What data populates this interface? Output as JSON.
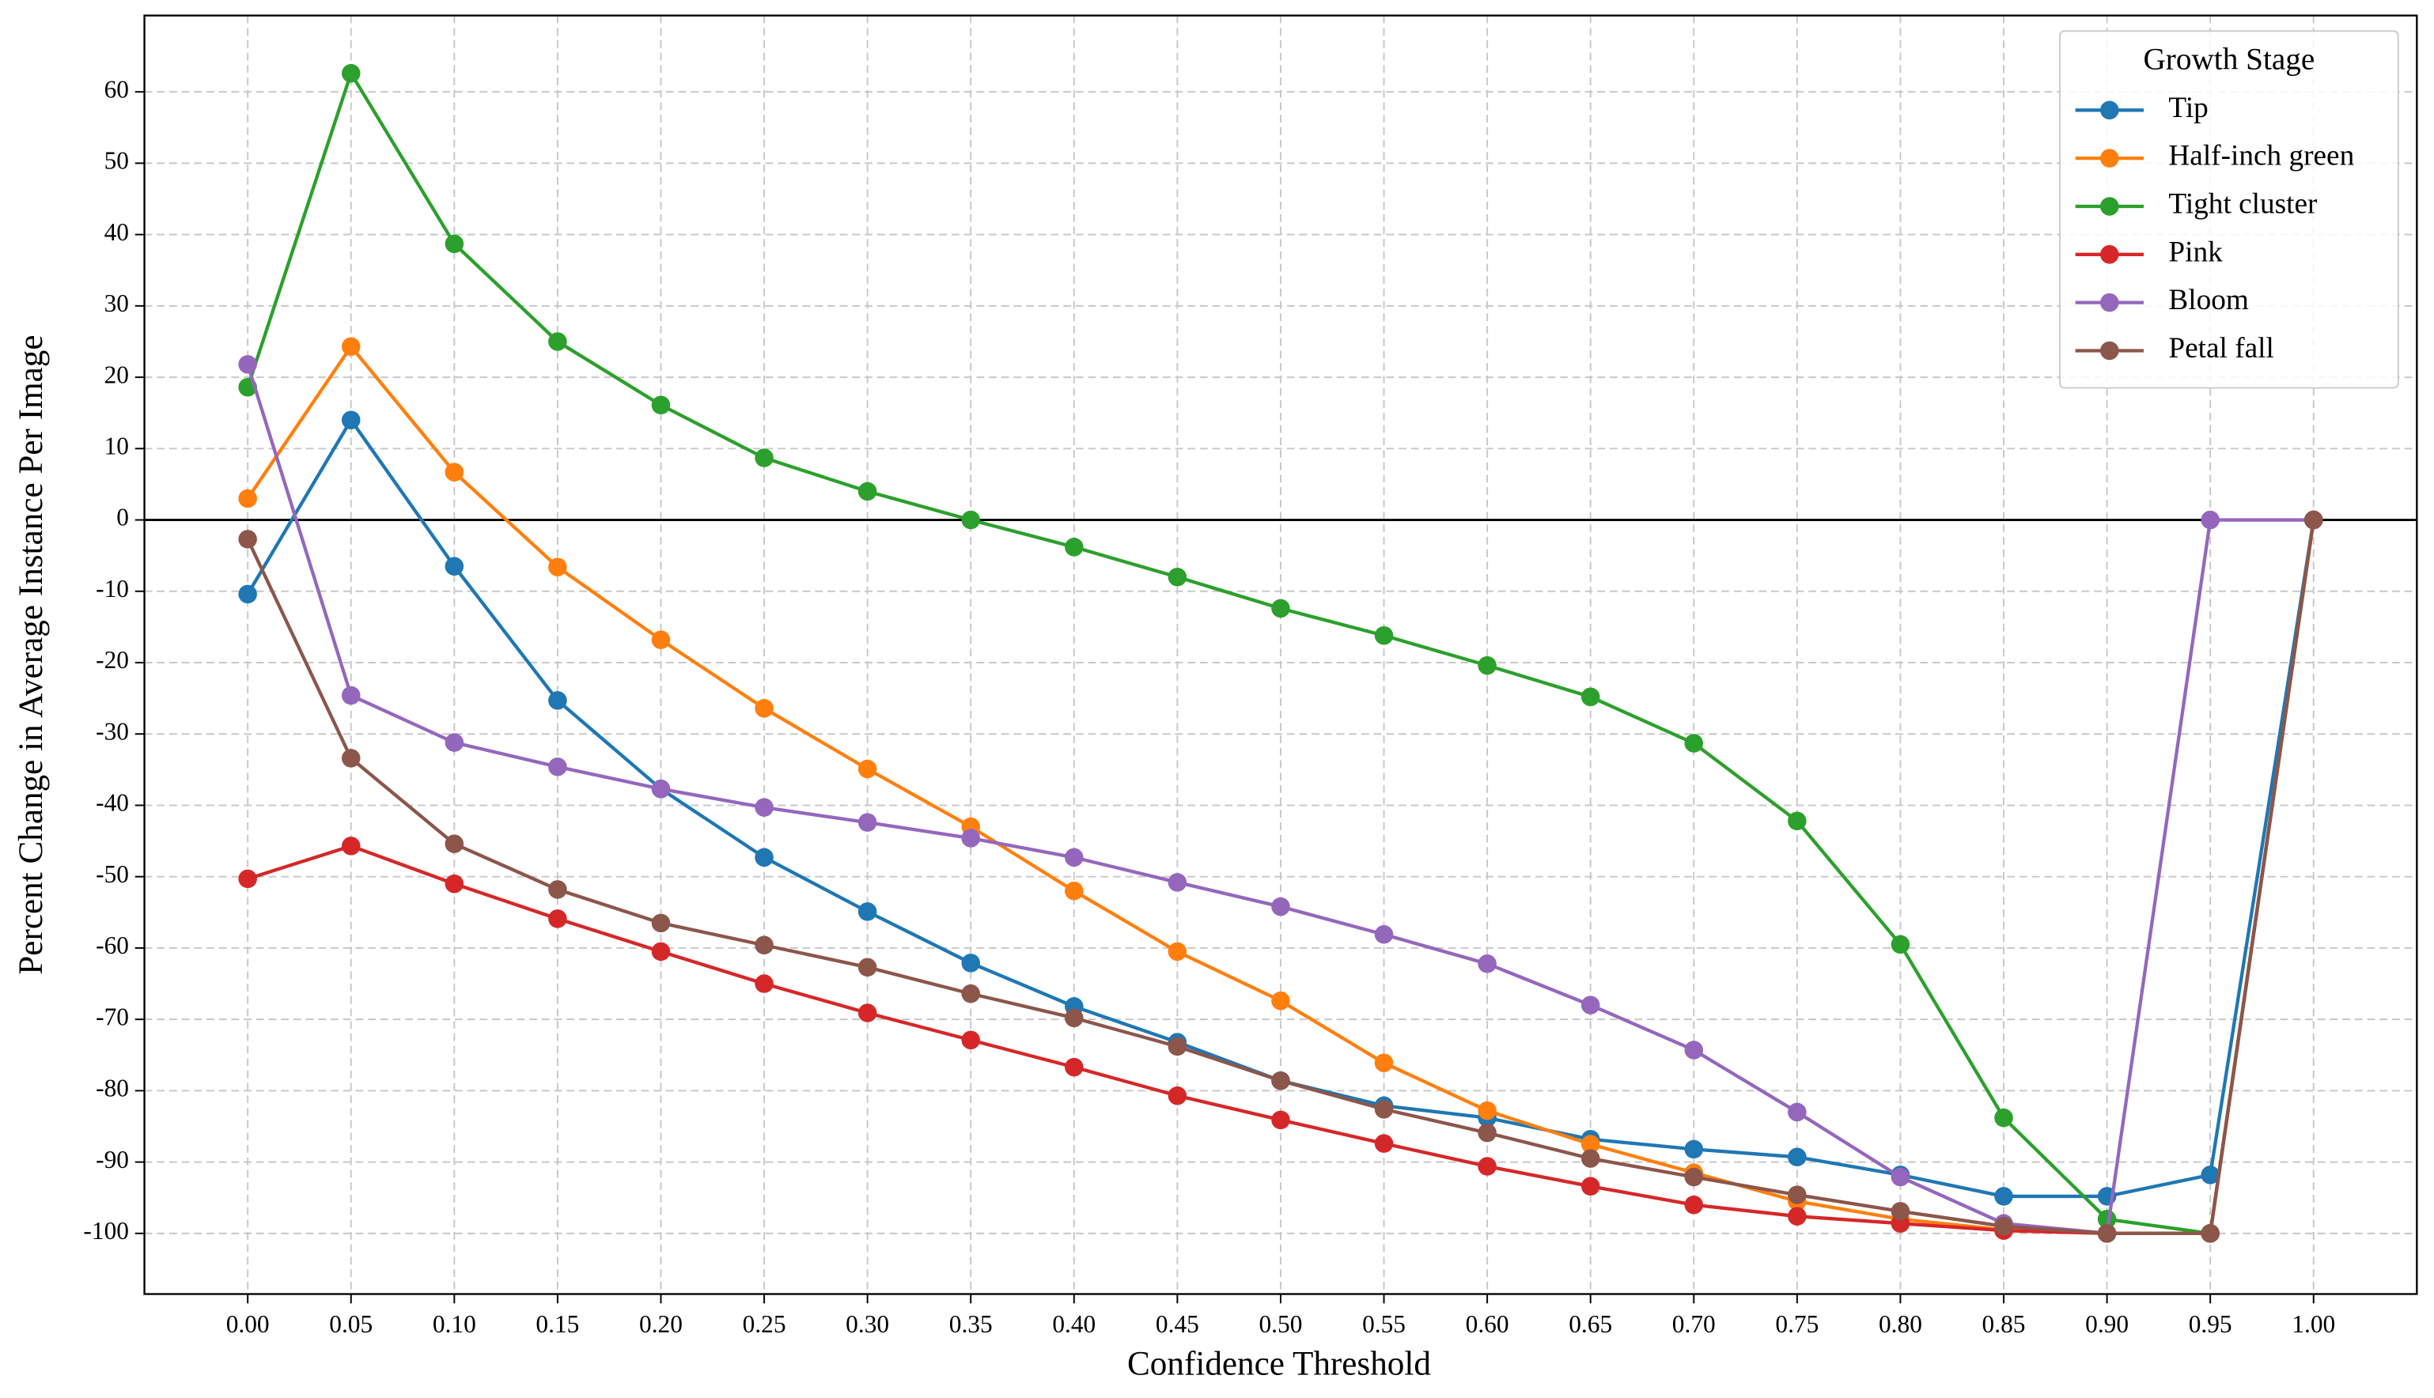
{
  "chart_data": {
    "type": "line",
    "x_label": "Confidence Threshold",
    "y_label": "Percent Change in Average Instance Per Image",
    "legend_title": "Growth Stage",
    "legend_position": "upper right",
    "grid": true,
    "reference_line": 0,
    "x": [
      0,
      0.05,
      0.1,
      0.15,
      0.2,
      0.25,
      0.3,
      0.35,
      0.4,
      0.45,
      0.5,
      0.55,
      0.6,
      0.65,
      0.7,
      0.75,
      0.8,
      0.85,
      0.9,
      0.95,
      1
    ],
    "xlim": [
      -0.05,
      1.05
    ],
    "xticks": [
      {
        "value": 0,
        "label": "0.00"
      },
      {
        "value": 0.05,
        "label": "0.05"
      },
      {
        "value": 0.1,
        "label": "0.10"
      },
      {
        "value": 0.15,
        "label": "0.15"
      },
      {
        "value": 0.2,
        "label": "0.20"
      },
      {
        "value": 0.25,
        "label": "0.25"
      },
      {
        "value": 0.3,
        "label": "0.30"
      },
      {
        "value": 0.35,
        "label": "0.35"
      },
      {
        "value": 0.4,
        "label": "0.40"
      },
      {
        "value": 0.45,
        "label": "0.45"
      },
      {
        "value": 0.5,
        "label": "0.50"
      },
      {
        "value": 0.55,
        "label": "0.55"
      },
      {
        "value": 0.6,
        "label": "0.60"
      },
      {
        "value": 0.65,
        "label": "0.65"
      },
      {
        "value": 0.7,
        "label": "0.70"
      },
      {
        "value": 0.75,
        "label": "0.75"
      },
      {
        "value": 0.8,
        "label": "0.80"
      },
      {
        "value": 0.85,
        "label": "0.85"
      },
      {
        "value": 0.9,
        "label": "0.90"
      },
      {
        "value": 0.95,
        "label": "0.95"
      },
      {
        "value": 1,
        "label": "1.00"
      }
    ],
    "ylim": [
      -108.5,
      70.7
    ],
    "yticks": [
      -100,
      -90,
      -80,
      -70,
      -60,
      -50,
      -40,
      -30,
      -20,
      -10,
      0,
      10,
      20,
      30,
      40,
      50,
      60
    ],
    "series": [
      {
        "name": "Tip",
        "color": "#1f77b4",
        "values": [
          -10.4,
          14,
          -6.5,
          -25.3,
          -37.7,
          -47.3,
          -54.9,
          -62.1,
          -68.2,
          -73.2,
          -78.6,
          -82.1,
          -83.8,
          -86.8,
          -88.2,
          -89.3,
          -91.8,
          -94.8,
          -94.8,
          -91.8,
          0
        ]
      },
      {
        "name": "Half-inch green",
        "color": "#ff7f0e",
        "values": [
          3,
          24.3,
          6.7,
          -6.6,
          -16.8,
          -26.4,
          -34.9,
          -43.0,
          -52.0,
          -60.5,
          -67.4,
          -76.1,
          -82.8,
          -87.5,
          -91.5,
          -95.5,
          -98.0,
          -99.5,
          -100,
          -100,
          0
        ]
      },
      {
        "name": "Tight cluster",
        "color": "#2ca02c",
        "values": [
          18.6,
          62.6,
          38.7,
          25.0,
          16.1,
          8.7,
          4.0,
          0,
          -3.8,
          -8.0,
          -12.4,
          -16.2,
          -20.4,
          -24.8,
          -31.3,
          -42.2,
          -59.5,
          -83.8,
          -98.0,
          -100,
          0
        ]
      },
      {
        "name": "Pink",
        "color": "#d62728",
        "values": [
          -50.3,
          -45.7,
          -51.0,
          -55.9,
          -60.5,
          -65.0,
          -69.1,
          -72.9,
          -76.7,
          -80.7,
          -84.1,
          -87.4,
          -90.6,
          -93.4,
          -96.0,
          -97.6,
          -98.6,
          -99.6,
          -100,
          -100,
          0
        ]
      },
      {
        "name": "Bloom",
        "color": "#9467bd",
        "values": [
          21.8,
          -24.6,
          -31.2,
          -34.6,
          -37.7,
          -40.3,
          -42.4,
          -44.6,
          -47.3,
          -50.8,
          -54.2,
          -58.1,
          -62.2,
          -68.0,
          -74.3,
          -83.0,
          -92.1,
          -98.6,
          -100,
          0,
          0
        ]
      },
      {
        "name": "Petal fall",
        "color": "#8c564b",
        "values": [
          -2.7,
          -33.4,
          -45.4,
          -51.8,
          -56.5,
          -59.6,
          -62.7,
          -66.4,
          -69.8,
          -73.8,
          -78.6,
          -82.6,
          -85.9,
          -89.5,
          -92.1,
          -94.6,
          -96.9,
          -99.0,
          -100,
          -100,
          0
        ]
      }
    ]
  }
}
